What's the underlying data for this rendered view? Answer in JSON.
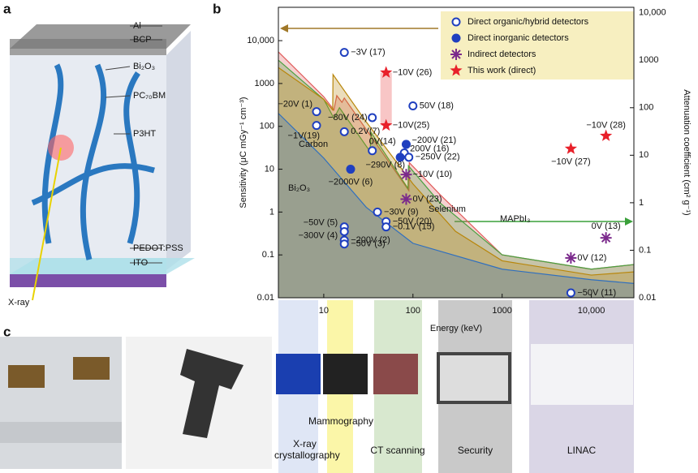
{
  "figure": {
    "panel_labels": [
      "a",
      "b",
      "c"
    ]
  },
  "device": {
    "layers": [
      "Al",
      "BCP",
      "Bi₂O₃",
      "PC₇₀BM",
      "P3HT",
      "PEDOT:PSS",
      "ITO"
    ],
    "xray": "X-ray"
  },
  "applications": [
    "X-ray crystallography",
    "Mammography",
    "CT scanning",
    "Security",
    "LINAC"
  ],
  "chart_data": {
    "type": "scatter",
    "xlabel": "Energy (keV)",
    "ylabel": "Sensitivity (μC mGy⁻¹ cm⁻³)",
    "y2label": "Attenuation coefficient (cm² g⁻¹)",
    "log_x": true,
    "log_y": true,
    "xlim": [
      3.1,
      30000
    ],
    "xticks": [
      10,
      100,
      1000,
      {
        "value": 10000,
        "label": "10,000"
      }
    ],
    "ylim": [
      0.01,
      60000
    ],
    "yticks": [
      0.01,
      0.1,
      1,
      10,
      100,
      1000,
      {
        "value": 10000,
        "label": "10,000"
      }
    ],
    "y2lim": [
      0.01,
      13000
    ],
    "y2ticks": [
      0.01,
      0.1,
      1,
      10,
      100,
      1000,
      {
        "value": 10000,
        "label": "10,000"
      }
    ],
    "legend": "upper right",
    "series": [
      {
        "name": "Direct organic/hybrid detectors",
        "marker": "open-circle",
        "color": "#1f3fbf",
        "x": [
          17,
          100,
          8.3,
          8.3,
          35,
          17,
          35,
          80,
          90,
          40,
          50,
          50,
          17,
          17,
          17,
          17,
          5900
        ],
        "values": [
          5300,
          300,
          220,
          105,
          160,
          75,
          27,
          24,
          19,
          1.0,
          0.6,
          0.45,
          0.45,
          0.35,
          0.22,
          0.18,
          0.013
        ],
        "labels": [
          "−3V (17)",
          "50V (18)",
          "−20V (1)",
          "−1V(19)",
          "−80V (24)",
          "0.2V(7)",
          "0V(14)",
          "200V (16)",
          "−250V (22)",
          "−30V (9)",
          "−50V (20)",
          "−0.1V (15)",
          "−50V (5)",
          "−300V (4)",
          "−200V (2)",
          "−50V (3)",
          "−50V (11)"
        ]
      },
      {
        "name": "Direct inorganic detectors",
        "marker": "circle",
        "color": "#1f3fbf",
        "x": [
          20,
          84,
          72
        ],
        "values": [
          10,
          38,
          19
        ],
        "labels": [
          "−2000V (6)",
          "−200V (21)",
          "−290V (8)"
        ]
      },
      {
        "name": "Indirect detectors",
        "marker": "asterisk",
        "color": "#7b2a8c",
        "x": [
          84,
          84,
          5900,
          14600
        ],
        "values": [
          7.5,
          2,
          0.085,
          0.25
        ],
        "labels": [
          "−10V (10)",
          "0V (23)",
          "0V (12)",
          "0V (13)"
        ]
      },
      {
        "name": "This work (direct)",
        "marker": "star",
        "color": "#e8202a",
        "x": [
          50,
          50,
          5900,
          14600
        ],
        "values": [
          1800,
          105,
          30,
          60
        ],
        "labels": [
          "−10V (26)",
          "−10V(25)",
          "−10V (27)",
          "−10V (28)"
        ]
      }
    ],
    "areas": [
      {
        "name": "Bi₂O₃",
        "color": "#e05a5a",
        "axis": "y2",
        "x": [
          3.1,
          10,
          13,
          14,
          16,
          17,
          90,
          91,
          200,
          1000,
          10000,
          30000
        ],
        "values": [
          1500,
          170,
          90,
          180,
          130,
          160,
          1.8,
          7,
          1.5,
          0.08,
          0.04,
          0.05
        ]
      },
      {
        "name": "MAPbI₃",
        "color": "#4aa040",
        "axis": "y2",
        "x": [
          3.1,
          10,
          13,
          15,
          33,
          34,
          88,
          89,
          200,
          1000,
          10000,
          30000
        ],
        "values": [
          1000,
          150,
          60,
          100,
          12,
          30,
          2,
          6,
          1.0,
          0.08,
          0.04,
          0.05
        ]
      },
      {
        "name": "Selenium",
        "color": "#b8860b",
        "axis": "y2",
        "x": [
          3.1,
          10,
          12.6,
          12.7,
          30,
          100,
          300,
          1000,
          10000,
          30000
        ],
        "values": [
          700,
          150,
          90,
          500,
          50,
          2.5,
          0.25,
          0.06,
          0.03,
          0.035
        ]
      },
      {
        "name": "Carbon",
        "color": "#2f6fbf",
        "axis": "y2",
        "x": [
          3.1,
          10,
          30,
          100,
          1000,
          10000,
          30000
        ],
        "values": [
          76,
          8.7,
          0.8,
          0.14,
          0.04,
          0.024,
          0.02
        ]
      }
    ]
  }
}
